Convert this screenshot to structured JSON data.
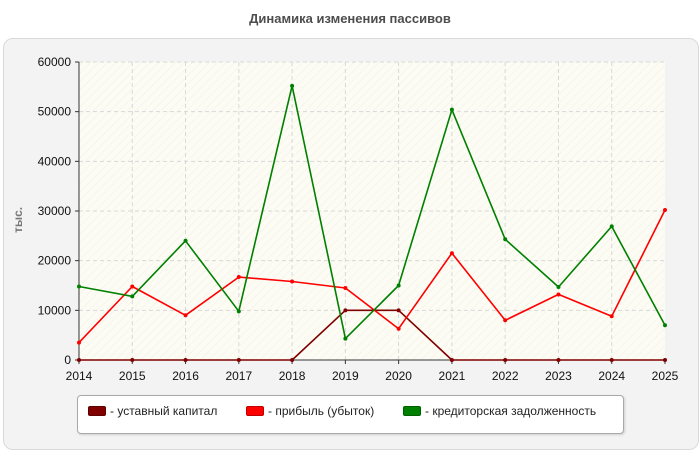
{
  "chart_data": {
    "type": "line",
    "title": "Динамика изменения пассивов",
    "ylabel": "тыс.",
    "x": [
      "2014",
      "2015",
      "2016",
      "2017",
      "2018",
      "2019",
      "2020",
      "2021",
      "2022",
      "2023",
      "2024",
      "2025"
    ],
    "ylim": [
      0,
      60000
    ],
    "yticks": [
      0,
      10000,
      20000,
      30000,
      40000,
      50000,
      60000
    ],
    "grid": true,
    "legend_position": "bottom",
    "series": [
      {
        "name": "- уставный капитал",
        "color": "#800000",
        "values": [
          0,
          0,
          0,
          0,
          0,
          10000,
          10000,
          0,
          0,
          0,
          0,
          0
        ]
      },
      {
        "name": "- прибыль (убыток)",
        "color": "#ff0000",
        "values": [
          3500,
          14800,
          9000,
          16700,
          15800,
          14500,
          6300,
          21500,
          8000,
          13200,
          8800,
          30200
        ]
      },
      {
        "name": "- кредиторская задолженность",
        "color": "#008000",
        "values": [
          14800,
          12800,
          24000,
          9800,
          55200,
          4300,
          15000,
          50400,
          24300,
          14700,
          26900,
          7000
        ]
      }
    ]
  }
}
